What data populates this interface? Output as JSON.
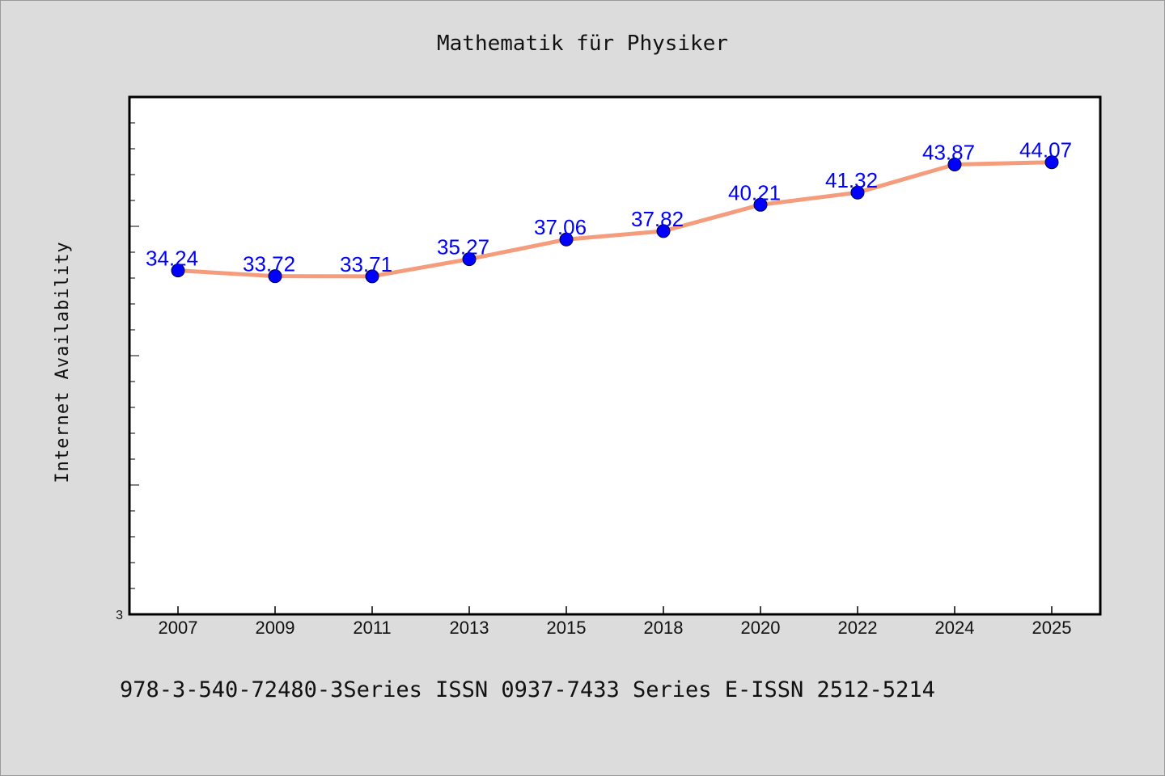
{
  "chart_data": {
    "type": "line",
    "title": "Mathematik für Physiker",
    "ylabel": "Internet Availability",
    "xlabel": "",
    "categories": [
      "2007",
      "2009",
      "2011",
      "2013",
      "2015",
      "2018",
      "2020",
      "2022",
      "2024",
      "2025"
    ],
    "series": [
      {
        "values": [
          34.24,
          33.72,
          33.71,
          35.27,
          37.06,
          37.82,
          40.21,
          41.32,
          43.87,
          44.07
        ],
        "labels": [
          "34.24",
          "33.72",
          "33.71",
          "35.27",
          "37.06",
          "37.82",
          "40.21",
          "41.32",
          "43.87",
          "44.07"
        ]
      }
    ],
    "ylim": [
      3,
      50
    ],
    "y_tick_labels": [
      "3"
    ],
    "grid": false,
    "line_color": "#f59c7c",
    "marker_color": "#0000ff",
    "label_color": "#0000ff"
  },
  "footer": "978-3-540-72480-3Series ISSN 0937-7433 Series E-ISSN 2512-5214"
}
